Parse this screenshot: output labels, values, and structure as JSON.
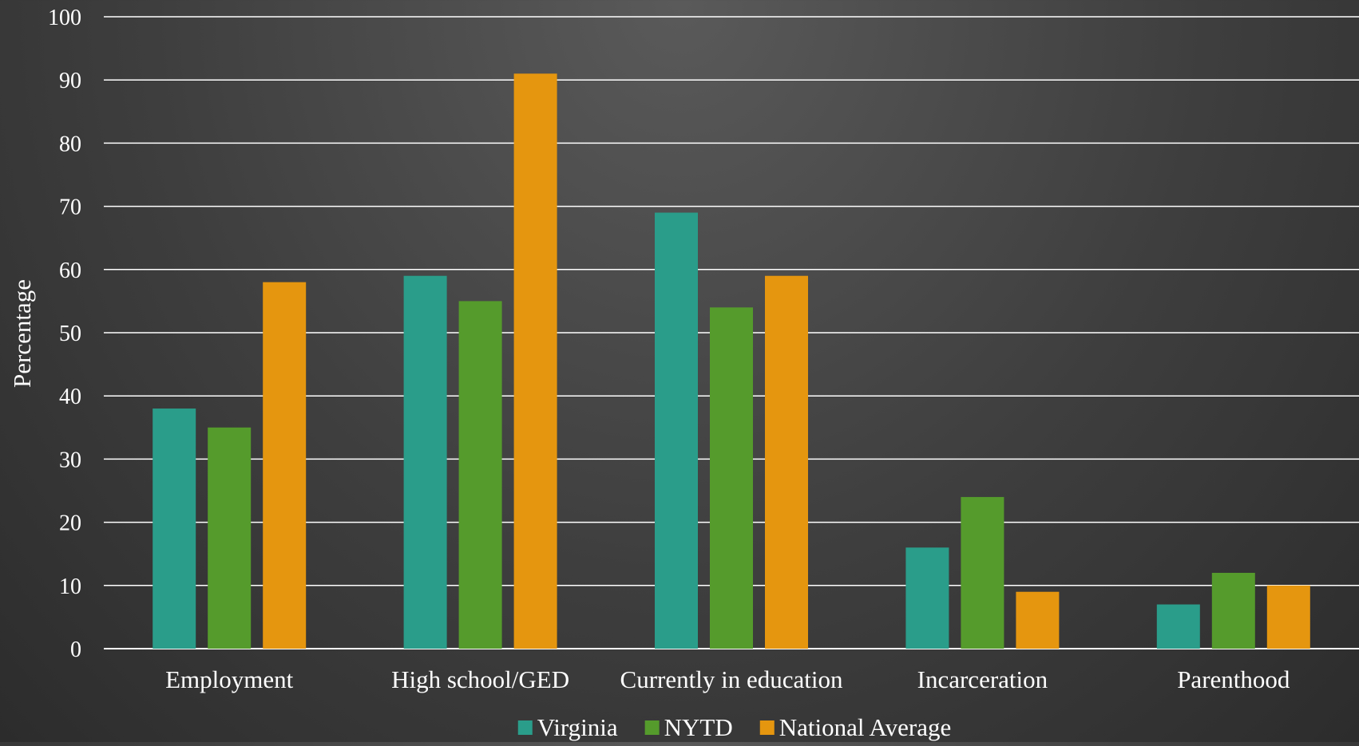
{
  "chart_data": {
    "type": "bar",
    "title": "",
    "xlabel": "",
    "ylabel": "Percentage",
    "ylim": [
      0,
      100
    ],
    "yticks": [
      0,
      10,
      20,
      30,
      40,
      50,
      60,
      70,
      80,
      90,
      100
    ],
    "grid": true,
    "legend_position": "bottom",
    "categories": [
      "Employment",
      "High school/GED",
      "Currently in education",
      "Incarceration",
      "Parenthood"
    ],
    "series": [
      {
        "name": "Virginia",
        "color": "#2a9d8a",
        "values": [
          38,
          59,
          69,
          16,
          7
        ]
      },
      {
        "name": "NYTD",
        "color": "#559b2c",
        "values": [
          35,
          55,
          54,
          24,
          12
        ]
      },
      {
        "name": "National Average",
        "color": "#e5960f",
        "values": [
          58,
          91,
          59,
          9,
          10
        ]
      }
    ]
  }
}
